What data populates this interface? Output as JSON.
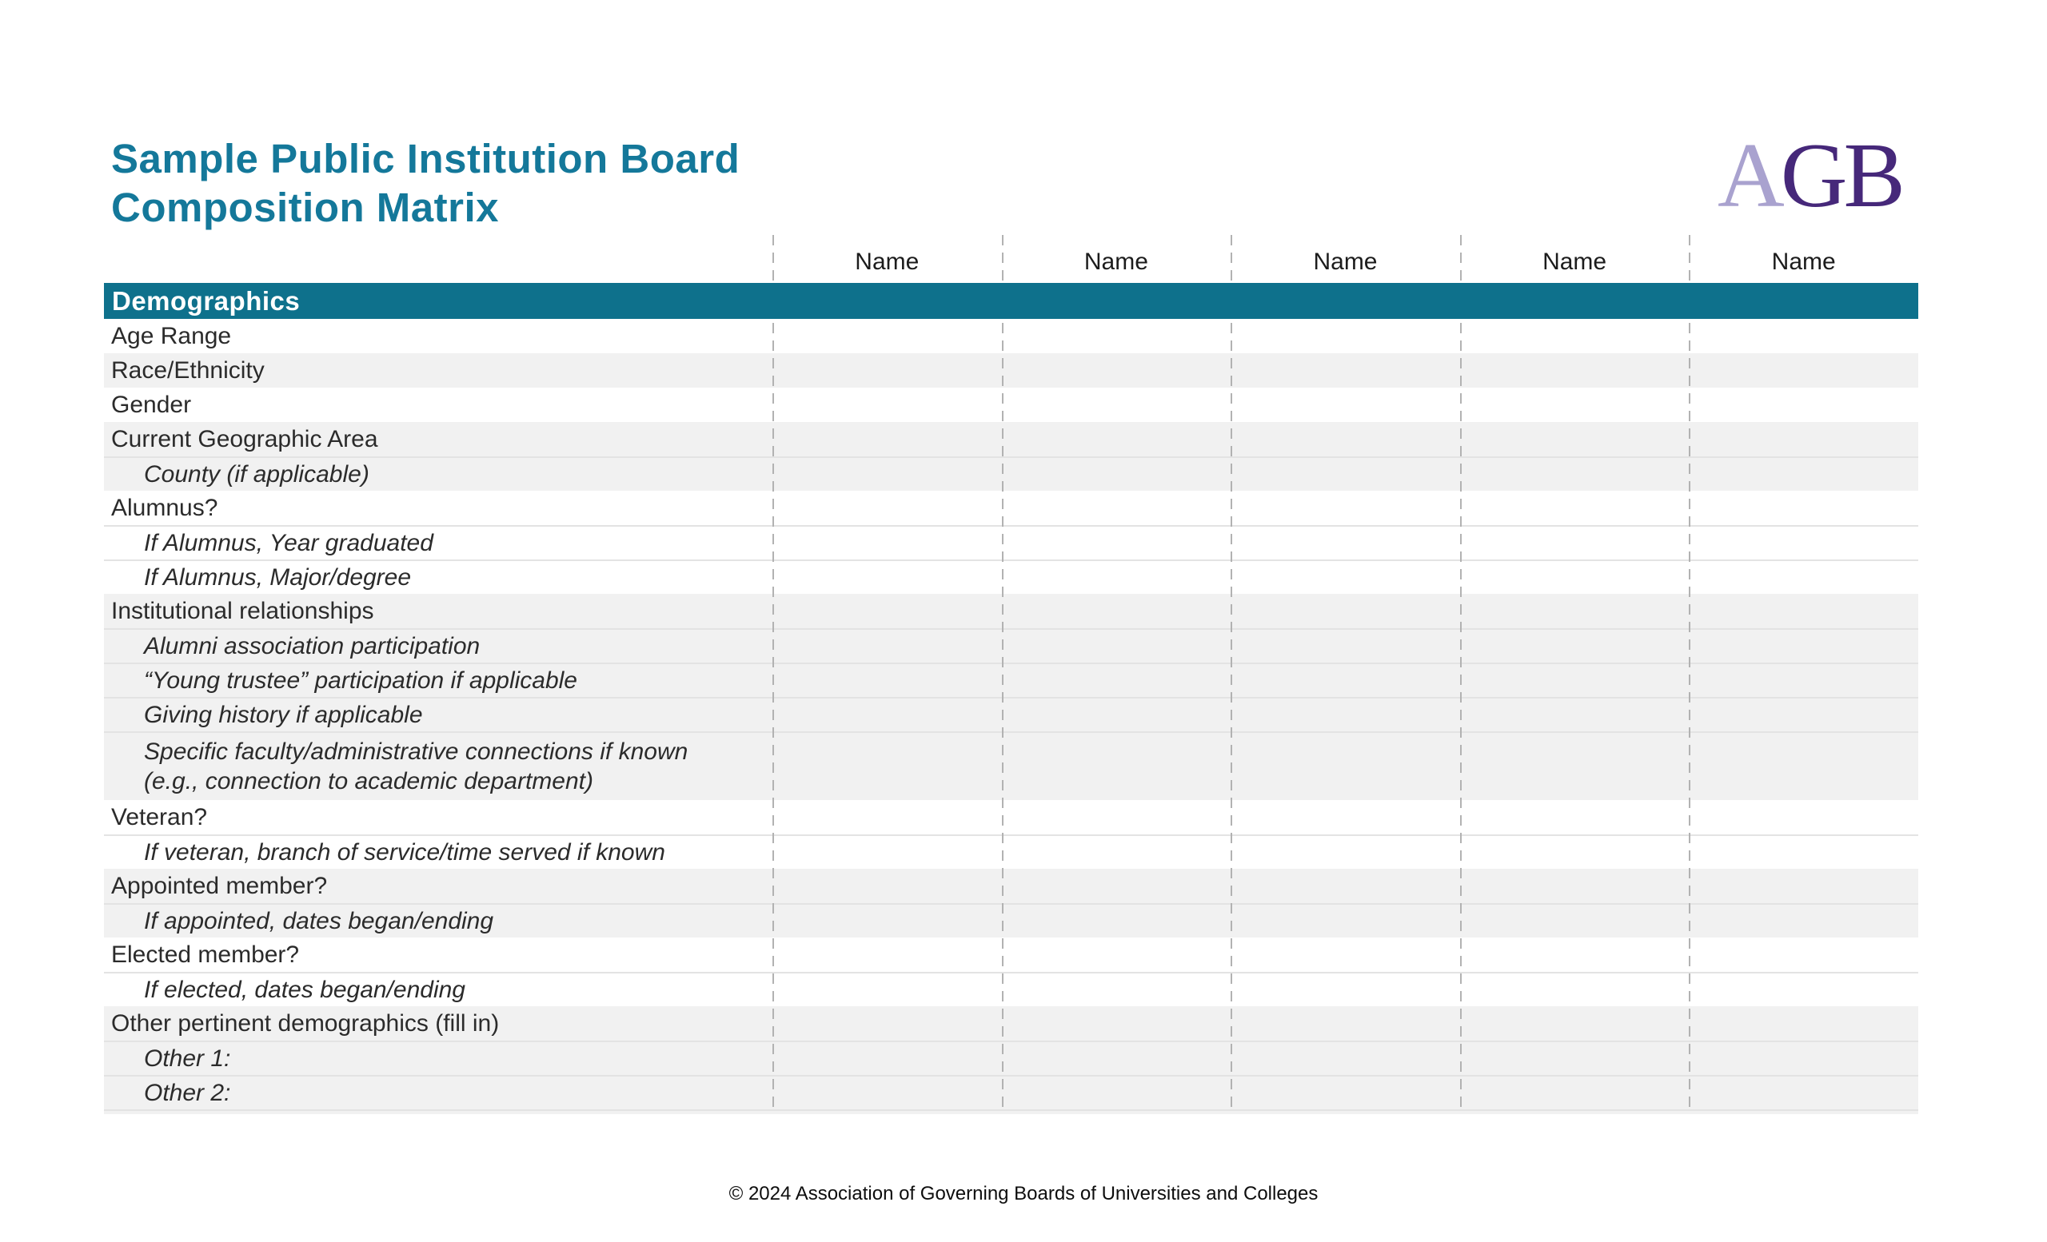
{
  "header": {
    "title_line1": "Sample Public Institution Board",
    "title_line2": "Composition Matrix",
    "logo": {
      "letter_light": "A",
      "letters_dark": "GB",
      "color_light": "#a9a2cf",
      "color_dark": "#46287a"
    }
  },
  "colors": {
    "title_teal": "#14789a",
    "section_band_teal": "#0e718c",
    "row_stripe_gray": "#f1f1f1",
    "row_separator": "#e3e3e3",
    "column_divider_gray": "#b2b2b2",
    "body_text": "#2b2b2b"
  },
  "table": {
    "columns": [
      "Name",
      "Name",
      "Name",
      "Name",
      "Name"
    ],
    "section_header": "Demographics",
    "empty_cell_value": "",
    "rows": [
      {
        "label": "Age Range",
        "sub": false,
        "bg": "white",
        "lines": 1
      },
      {
        "label": "Race/Ethnicity",
        "sub": false,
        "bg": "gray",
        "lines": 1
      },
      {
        "label": "Gender",
        "sub": false,
        "bg": "white",
        "lines": 1
      },
      {
        "label": "Current Geographic Area",
        "sub": false,
        "bg": "gray",
        "lines": 1
      },
      {
        "label": "County (if applicable)",
        "sub": true,
        "bg": "gray",
        "lines": 1
      },
      {
        "label": "Alumnus?",
        "sub": false,
        "bg": "white",
        "lines": 1
      },
      {
        "label": "If Alumnus, Year graduated",
        "sub": true,
        "bg": "white",
        "lines": 1
      },
      {
        "label": "If Alumnus, Major/degree",
        "sub": true,
        "bg": "white",
        "lines": 1
      },
      {
        "label": "Institutional relationships",
        "sub": false,
        "bg": "gray",
        "lines": 1
      },
      {
        "label": "Alumni association participation",
        "sub": true,
        "bg": "gray",
        "lines": 1
      },
      {
        "label": "“Young trustee” participation if applicable",
        "sub": true,
        "bg": "gray",
        "lines": 1
      },
      {
        "label": "Giving history if applicable",
        "sub": true,
        "bg": "gray",
        "lines": 1
      },
      {
        "label": "Specific faculty/administrative connections if known\n(e.g., connection to academic department)",
        "sub": true,
        "bg": "gray",
        "lines": 2
      },
      {
        "label": "Veteran?",
        "sub": false,
        "bg": "white",
        "lines": 1
      },
      {
        "label": "If veteran, branch of service/time served if known",
        "sub": true,
        "bg": "white",
        "lines": 1
      },
      {
        "label": "Appointed member?",
        "sub": false,
        "bg": "gray",
        "lines": 1
      },
      {
        "label": "If appointed, dates began/ending",
        "sub": true,
        "bg": "gray",
        "lines": 1
      },
      {
        "label": "Elected member?",
        "sub": false,
        "bg": "white",
        "lines": 1
      },
      {
        "label": "If elected, dates began/ending",
        "sub": true,
        "bg": "white",
        "lines": 1
      },
      {
        "label": "Other pertinent demographics (fill in)",
        "sub": false,
        "bg": "gray",
        "lines": 1
      },
      {
        "label": "Other 1:",
        "sub": true,
        "bg": "gray",
        "lines": 1
      },
      {
        "label": "Other 2:",
        "sub": true,
        "bg": "gray",
        "lines": 1
      }
    ]
  },
  "footer": {
    "copyright": "© 2024 Association of Governing Boards of Universities and Colleges"
  }
}
